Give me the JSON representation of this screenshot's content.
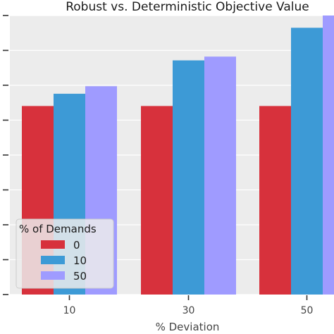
{
  "chart_data": {
    "type": "bar",
    "title": "Robust vs. Deterministic Objective Value",
    "xlabel": "% Deviation",
    "ylabel": "",
    "categories": [
      "10",
      "30",
      "50"
    ],
    "series": [
      {
        "name": "0",
        "values": [
          1.0,
          1.0,
          1.0
        ]
      },
      {
        "name": "10",
        "values": [
          1.065,
          1.242,
          1.415
        ]
      },
      {
        "name": "50",
        "values": [
          1.105,
          1.262,
          1.48
        ]
      }
    ],
    "ylim": [
      0,
      1.48
    ],
    "ytick_count": 9,
    "grid": true,
    "legend": {
      "title": "% of Demands",
      "placement": "lower-left"
    },
    "colors": {
      "0": "#d7313c",
      "10": "#3d9ad6",
      "50": "#9f9bff",
      "background": "#ececec",
      "grid": "#ffffff"
    }
  }
}
